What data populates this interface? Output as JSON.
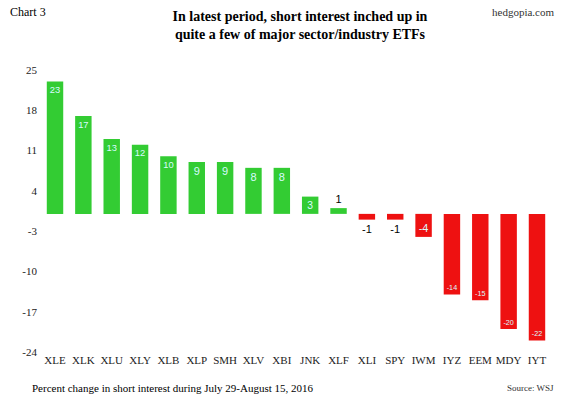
{
  "chart_data": {
    "type": "bar",
    "label": "Chart 3",
    "credit": "hedgopia.com",
    "title": "In latest period, short interest inched up in\nquite a few of major sector/industry ETFs",
    "note": "Percent change in short interest during July 29-August 15, 2016",
    "source": "Source: WSJ",
    "categories": [
      "XLE",
      "XLK",
      "XLU",
      "XLY",
      "XLB",
      "XLP",
      "SMH",
      "XLV",
      "XBI",
      "JNK",
      "XLF",
      "XLI",
      "SPY",
      "IWM",
      "IYZ",
      "EEM",
      "MDY",
      "IYT"
    ],
    "values": [
      23,
      17,
      13,
      12,
      10,
      9,
      9,
      8,
      8,
      3,
      1,
      -1,
      -1,
      -4,
      -14,
      -15,
      -20,
      -22
    ],
    "colors": [
      "#33cc33",
      "#33cc33",
      "#33cc33",
      "#33cc33",
      "#33cc33",
      "#33cc33",
      "#33cc33",
      "#33cc33",
      "#33cc33",
      "#33cc33",
      "#33cc33",
      "#ee1111",
      "#ee1111",
      "#ee1111",
      "#ee1111",
      "#ee1111",
      "#ee1111",
      "#ee1111"
    ],
    "ylim": [
      -24,
      25
    ],
    "yticks": [
      -24,
      -17,
      -10,
      -3,
      4,
      11,
      18,
      25
    ],
    "grid": false,
    "data_labels": true
  }
}
